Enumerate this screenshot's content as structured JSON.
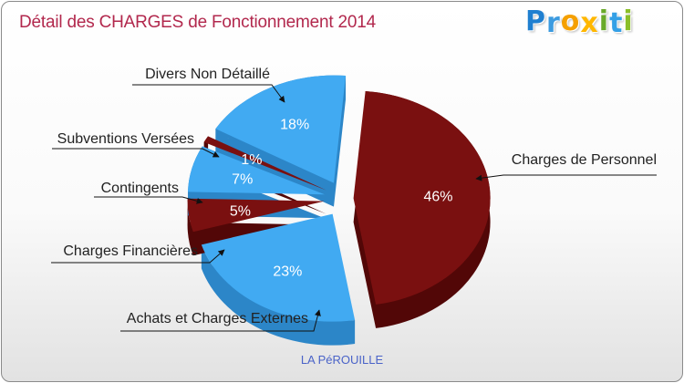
{
  "title": "Détail des CHARGES de Fonctionnement 2014",
  "logo": {
    "text": "Proxiti",
    "letters": [
      {
        "ch": "P",
        "color": "#1f7fd0"
      },
      {
        "ch": "r",
        "color": "#3c9be0"
      },
      {
        "ch": "o",
        "color": "#f5a000"
      },
      {
        "ch": "x",
        "color": "#ffb700"
      },
      {
        "ch": "i",
        "color": "#6aaa2a"
      },
      {
        "ch": "t",
        "color": "#34a0e6"
      },
      {
        "ch": "i",
        "color": "#8bbf2a"
      }
    ]
  },
  "footer": "LA PéROUILLE",
  "colors": {
    "blue": "#41aaf2",
    "blue_dark": "#2a82c4",
    "red": "#7a1010",
    "red_dark": "#500606",
    "title": "#b2284d"
  },
  "chart_data": {
    "type": "pie",
    "style": "exploded 3d pie",
    "slices": [
      {
        "label": "Charges de Personnel",
        "value": 46,
        "pct_label": "46%",
        "color": "#7a1010"
      },
      {
        "label": "Achats et Charges Externes",
        "value": 23,
        "pct_label": "23%",
        "color": "#41aaf2"
      },
      {
        "label": "Charges Financières",
        "value": 5,
        "pct_label": "5%",
        "color": "#7a1010"
      },
      {
        "label": "Contingents",
        "value": 7,
        "pct_label": "7%",
        "color": "#41aaf2"
      },
      {
        "label": "Subventions Versées",
        "value": 1,
        "pct_label": "1%",
        "color": "#7a1010"
      },
      {
        "label": "Divers Non Détaillé",
        "value": 18,
        "pct_label": "18%",
        "color": "#41aaf2"
      }
    ]
  }
}
